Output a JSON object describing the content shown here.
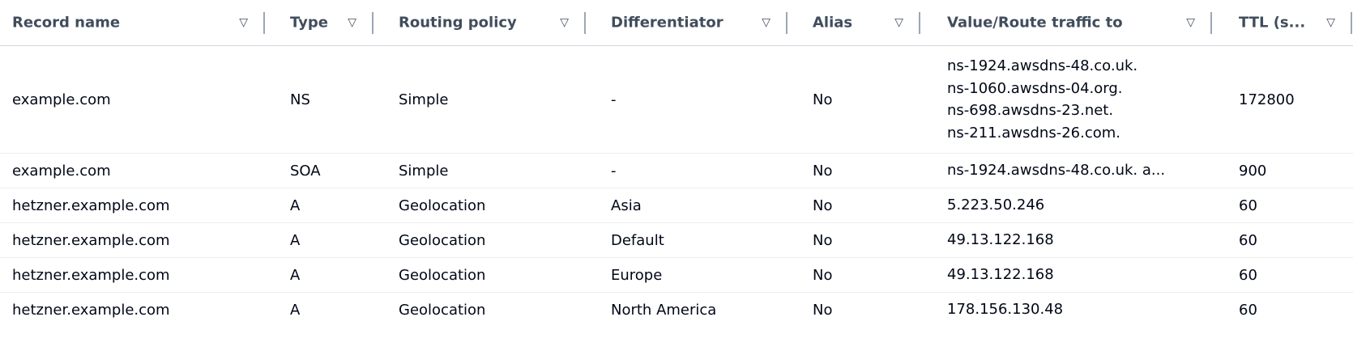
{
  "columns": [
    {
      "label": "Record name"
    },
    {
      "label": "Type"
    },
    {
      "label": "Routing policy"
    },
    {
      "label": "Differentiator"
    },
    {
      "label": "Alias"
    },
    {
      "label": "Value/Route traffic to"
    },
    {
      "label": "TTL (s..."
    }
  ],
  "sort_icon": "caret-down-icon",
  "rows": [
    {
      "name": "example.com",
      "type": "NS",
      "policy": "Simple",
      "diff": "-",
      "alias": "No",
      "values": [
        "ns-1924.awsdns-48.co.uk.",
        "ns-1060.awsdns-04.org.",
        "ns-698.awsdns-23.net.",
        "ns-211.awsdns-26.com."
      ],
      "ttl": "172800"
    },
    {
      "name": "example.com",
      "type": "SOA",
      "policy": "Simple",
      "diff": "-",
      "alias": "No",
      "values": [
        "ns-1924.awsdns-48.co.uk. a..."
      ],
      "ttl": "900"
    },
    {
      "name": "hetzner.example.com",
      "type": "A",
      "policy": "Geolocation",
      "diff": "Asia",
      "alias": "No",
      "values": [
        "5.223.50.246"
      ],
      "ttl": "60"
    },
    {
      "name": "hetzner.example.com",
      "type": "A",
      "policy": "Geolocation",
      "diff": "Default",
      "alias": "No",
      "values": [
        "49.13.122.168"
      ],
      "ttl": "60"
    },
    {
      "name": "hetzner.example.com",
      "type": "A",
      "policy": "Geolocation",
      "diff": "Europe",
      "alias": "No",
      "values": [
        "49.13.122.168"
      ],
      "ttl": "60"
    },
    {
      "name": "hetzner.example.com",
      "type": "A",
      "policy": "Geolocation",
      "diff": "North America",
      "alias": "No",
      "values": [
        "178.156.130.48"
      ],
      "ttl": "60"
    }
  ]
}
